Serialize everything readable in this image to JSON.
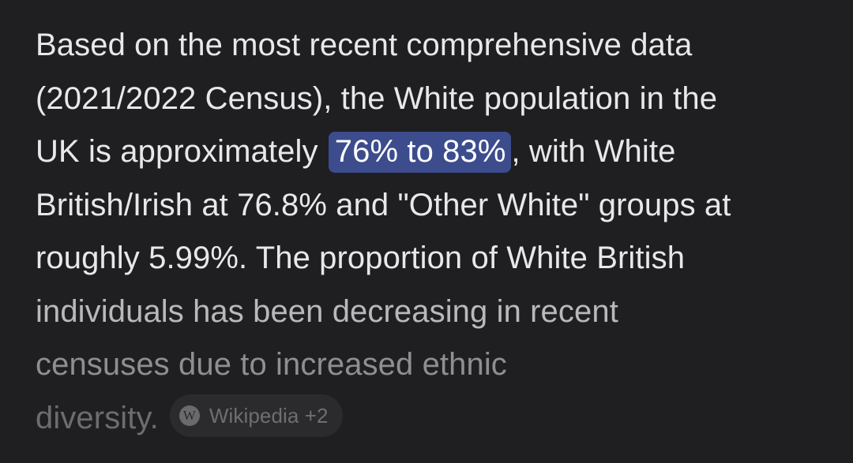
{
  "answer": {
    "line1": "Based on the most recent comprehensive data",
    "line2": "(2021/2022 Census), the White population in the",
    "line3_before": "UK is approximately ",
    "line3_highlight": "76% to 83%",
    "line3_after": ", with White",
    "line4": "British/Irish at 76.8% and \"Other White\" groups at",
    "line5": "roughly 5.99%. The proportion of White British",
    "line6": "individuals has been decreasing in recent",
    "line7": "censuses due to increased ethnic",
    "line8": "diversity."
  },
  "source_chip": {
    "icon": "wikipedia-icon",
    "icon_glyph": "W",
    "label": "Wikipedia +2"
  },
  "colors": {
    "background": "#1f1f22",
    "text": "#e8e8ea",
    "highlight_bg": "#3c4c8c",
    "chip_bg": "#2b2b2e"
  }
}
